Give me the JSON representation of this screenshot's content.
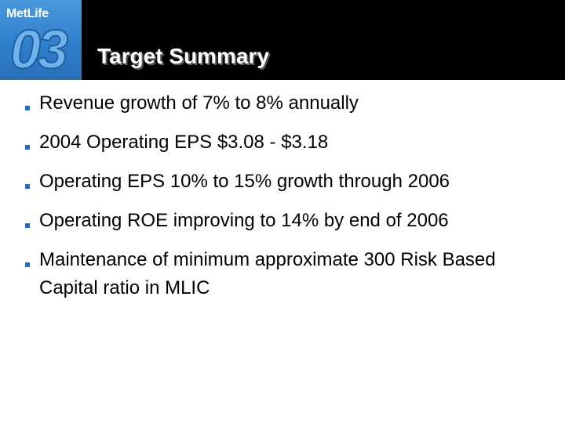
{
  "header": {
    "logo_text": "MetLife",
    "logo_year": "03",
    "title": "Target Summary"
  },
  "bullets": [
    {
      "text": "Revenue growth of 7% to 8% annually"
    },
    {
      "text": "2004 Operating EPS $3.08 - $3.18"
    },
    {
      "text": "Operating EPS 10% to 15% growth through 2006"
    },
    {
      "text": "Operating ROE improving to 14% by end of 2006"
    },
    {
      "text": "Maintenance of minimum approximate 300 Risk Based Capital ratio in MLIC"
    }
  ],
  "colors": {
    "header_background": "#000000",
    "logo_blue": "#2f7fcc",
    "bullet_marker": "#1f6fc1",
    "title_text": "#ffffff",
    "body_text": "#000000"
  }
}
